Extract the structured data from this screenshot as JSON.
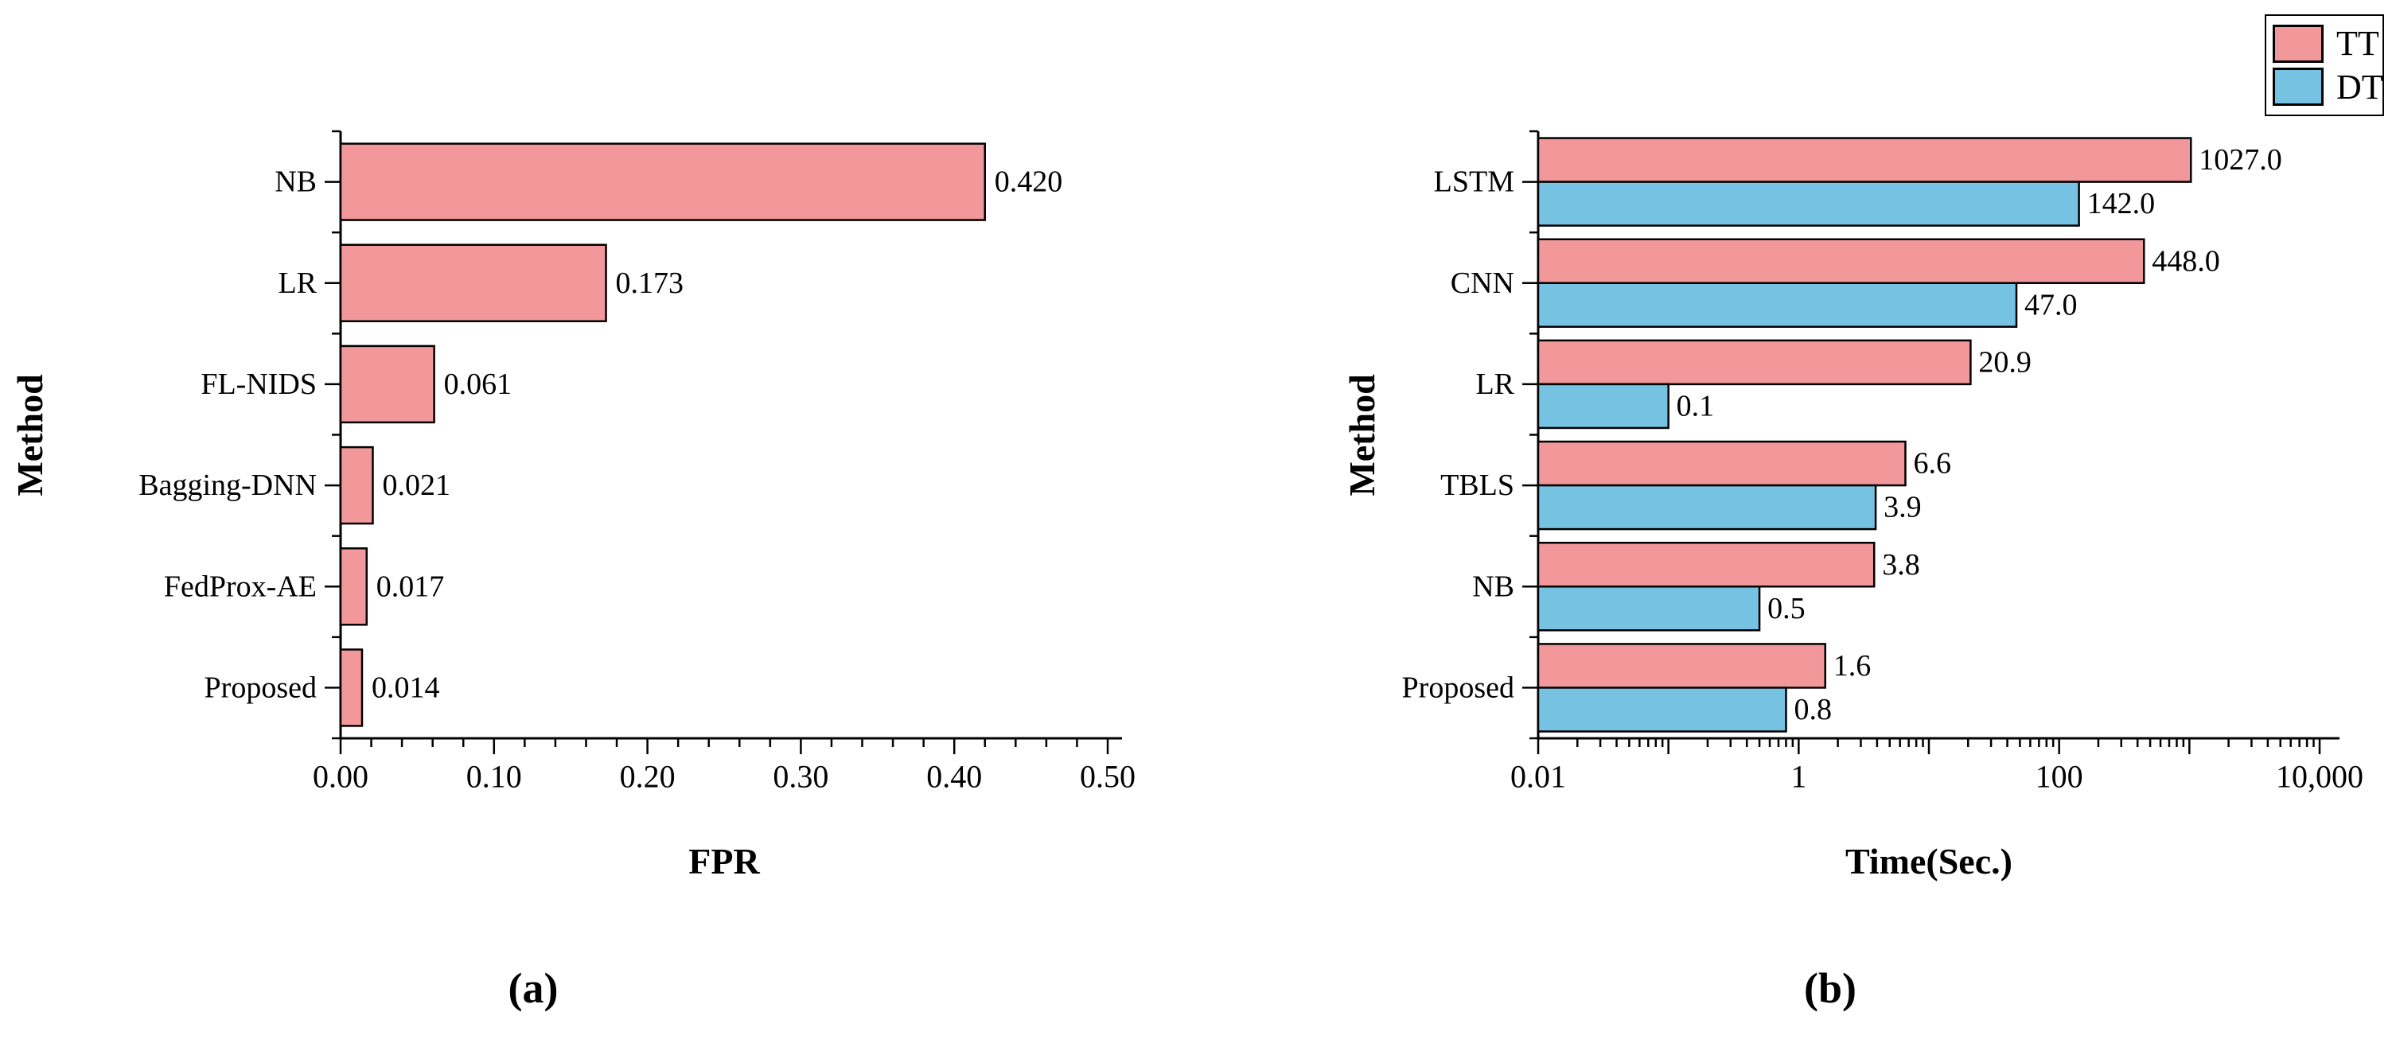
{
  "figure": {
    "background": "#ffffff",
    "text_color": "#000000"
  },
  "chart_data": [
    {
      "id": "a",
      "type": "bar",
      "orientation": "horizontal",
      "title": "",
      "caption": "(a)",
      "xlabel": "FPR",
      "ylabel": "Method",
      "scale": "linear",
      "grid": false,
      "bar_color": "#F2989B",
      "bar_edge_color": "#000000",
      "categories": [
        "NB",
        "LR",
        "FL-NIDS",
        "Bagging-DNN",
        "FedProx-AE",
        "Proposed"
      ],
      "values": [
        0.42,
        0.173,
        0.061,
        0.021,
        0.017,
        0.014
      ],
      "value_labels": [
        "0.420",
        "0.173",
        "0.061",
        "0.021",
        "0.017",
        "0.014"
      ],
      "xlim": [
        0,
        0.5
      ],
      "x_tick_values": [
        0,
        0.1,
        0.2,
        0.3,
        0.4,
        0.5
      ],
      "x_tick_labels": [
        "0.00",
        "0.10",
        "0.20",
        "0.30",
        "0.40",
        "0.50"
      ],
      "x_minor_tick_step": 0.02
    },
    {
      "id": "b",
      "type": "bar",
      "orientation": "horizontal",
      "title": "",
      "caption": "(b)",
      "xlabel": "Time(Sec.)",
      "ylabel": "Method",
      "scale": "log",
      "grid": false,
      "categories": [
        "LSTM",
        "CNN",
        "LR",
        "TBLS",
        "NB",
        "Proposed"
      ],
      "series": [
        {
          "name": "TT",
          "color": "#F2989B",
          "edge_color": "#000000",
          "values": [
            1027.0,
            448.0,
            20.9,
            6.6,
            3.8,
            1.6
          ],
          "value_labels": [
            "1027.0",
            "448.0",
            "20.9",
            "6.6",
            "3.8",
            "1.6"
          ]
        },
        {
          "name": "DT",
          "color": "#75C2E2",
          "edge_color": "#000000",
          "values": [
            142.0,
            47.0,
            0.1,
            3.9,
            0.5,
            0.8
          ],
          "value_labels": [
            "142.0",
            "47.0",
            "0.1",
            "3.9",
            "0.5",
            "0.8"
          ]
        }
      ],
      "xlim": [
        0.01,
        10000
      ],
      "x_tick_values": [
        0.01,
        1,
        100,
        10000
      ],
      "x_tick_labels": [
        "0.01",
        "1",
        "100",
        "10,000"
      ],
      "legend": {
        "position": "top-right",
        "entries": [
          "TT",
          "DT"
        ]
      }
    }
  ]
}
